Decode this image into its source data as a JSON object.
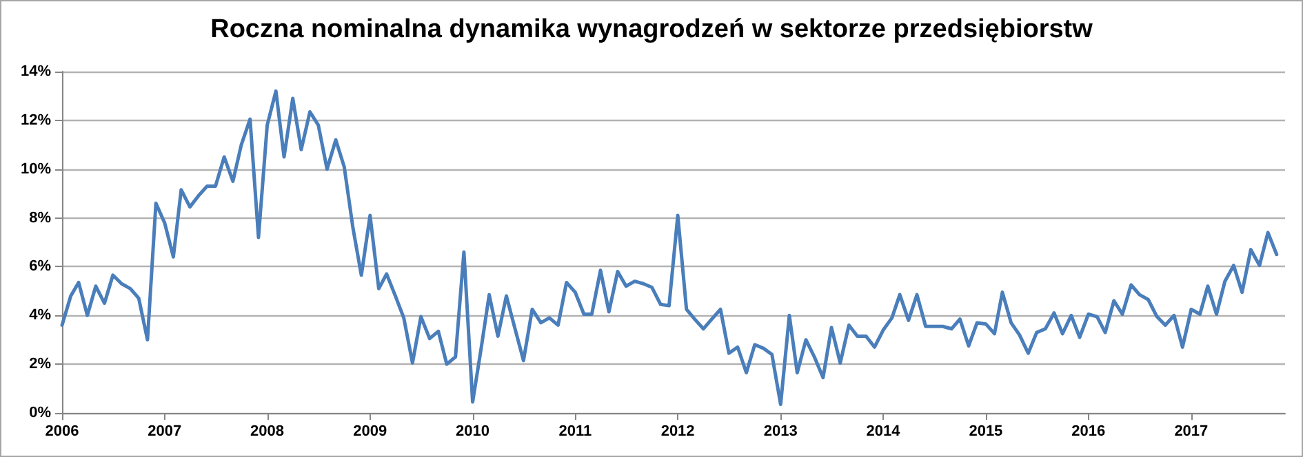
{
  "chart_data": {
    "type": "line",
    "title": "Roczna nominalna dynamika wynagrodzeń w sektorze przedsiębiorstw",
    "x": [
      "2006-01",
      "2006-02",
      "2006-03",
      "2006-04",
      "2006-05",
      "2006-06",
      "2006-07",
      "2006-08",
      "2006-09",
      "2006-10",
      "2006-11",
      "2006-12",
      "2007-01",
      "2007-02",
      "2007-03",
      "2007-04",
      "2007-05",
      "2007-06",
      "2007-07",
      "2007-08",
      "2007-09",
      "2007-10",
      "2007-11",
      "2007-12",
      "2008-01",
      "2008-02",
      "2008-03",
      "2008-04",
      "2008-05",
      "2008-06",
      "2008-07",
      "2008-08",
      "2008-09",
      "2008-10",
      "2008-11",
      "2008-12",
      "2009-01",
      "2009-02",
      "2009-03",
      "2009-04",
      "2009-05",
      "2009-06",
      "2009-07",
      "2009-08",
      "2009-09",
      "2009-10",
      "2009-11",
      "2009-12",
      "2010-01",
      "2010-02",
      "2010-03",
      "2010-04",
      "2010-05",
      "2010-06",
      "2010-07",
      "2010-08",
      "2010-09",
      "2010-10",
      "2010-11",
      "2010-12",
      "2011-01",
      "2011-02",
      "2011-03",
      "2011-04",
      "2011-05",
      "2011-06",
      "2011-07",
      "2011-08",
      "2011-09",
      "2011-10",
      "2011-11",
      "2011-12",
      "2012-01",
      "2012-02",
      "2012-03",
      "2012-04",
      "2012-05",
      "2012-06",
      "2012-07",
      "2012-08",
      "2012-09",
      "2012-10",
      "2012-11",
      "2012-12",
      "2013-01",
      "2013-02",
      "2013-03",
      "2013-04",
      "2013-05",
      "2013-06",
      "2013-07",
      "2013-08",
      "2013-09",
      "2013-10",
      "2013-11",
      "2013-12",
      "2014-01",
      "2014-02",
      "2014-03",
      "2014-04",
      "2014-05",
      "2014-06",
      "2014-07",
      "2014-08",
      "2014-09",
      "2014-10",
      "2014-11",
      "2014-12",
      "2015-01",
      "2015-02",
      "2015-03",
      "2015-04",
      "2015-05",
      "2015-06",
      "2015-07",
      "2015-08",
      "2015-09",
      "2015-10",
      "2015-11",
      "2015-12",
      "2016-01",
      "2016-02",
      "2016-03",
      "2016-04",
      "2016-05",
      "2016-06",
      "2016-07",
      "2016-08",
      "2016-09",
      "2016-10",
      "2016-11",
      "2016-12",
      "2017-01",
      "2017-02",
      "2017-03",
      "2017-04",
      "2017-05",
      "2017-06",
      "2017-07",
      "2017-08",
      "2017-09",
      "2017-10",
      "2017-11"
    ],
    "series": [
      {
        "color": "#4a7ebb",
        "values": [
          3.6,
          4.8,
          5.35,
          4.0,
          5.2,
          4.5,
          5.65,
          5.3,
          5.1,
          4.7,
          3.0,
          8.6,
          7.8,
          6.4,
          9.15,
          8.45,
          8.9,
          9.3,
          9.3,
          10.5,
          9.5,
          11.0,
          12.05,
          7.2,
          11.8,
          13.2,
          10.5,
          12.9,
          10.8,
          12.35,
          11.8,
          10.0,
          11.2,
          10.1,
          7.6,
          5.65,
          8.1,
          5.1,
          5.7,
          4.8,
          3.9,
          2.05,
          3.95,
          3.05,
          3.35,
          2.0,
          2.3,
          6.6,
          0.45,
          2.7,
          4.85,
          3.15,
          4.8,
          3.45,
          2.15,
          4.25,
          3.7,
          3.9,
          3.6,
          5.35,
          4.95,
          4.05,
          4.05,
          5.85,
          4.15,
          5.8,
          5.2,
          5.4,
          5.3,
          5.15,
          4.45,
          4.4,
          8.1,
          4.25,
          3.85,
          3.45,
          3.85,
          4.25,
          2.45,
          2.7,
          1.65,
          2.8,
          2.65,
          2.4,
          0.35,
          4.0,
          1.65,
          3.0,
          2.3,
          1.45,
          3.5,
          2.05,
          3.6,
          3.15,
          3.15,
          2.7,
          3.4,
          3.9,
          4.85,
          3.8,
          4.85,
          3.55,
          3.55,
          3.55,
          3.45,
          3.85,
          2.75,
          3.7,
          3.65,
          3.25,
          4.95,
          3.7,
          3.2,
          2.45,
          3.3,
          3.45,
          4.1,
          3.25,
          4.0,
          3.1,
          4.05,
          3.95,
          3.3,
          4.6,
          4.05,
          5.25,
          4.85,
          4.65,
          3.95,
          3.6,
          4.0,
          2.7,
          4.25,
          4.05,
          5.2,
          4.05,
          5.4,
          6.05,
          4.95,
          6.7,
          6.05,
          7.4,
          6.5
        ]
      }
    ],
    "xlim": [
      "2006-01",
      "2017-12"
    ],
    "xticks": [
      "2006",
      "2007",
      "2008",
      "2009",
      "2010",
      "2011",
      "2012",
      "2013",
      "2014",
      "2015",
      "2016",
      "2017"
    ],
    "ylim": [
      0,
      14
    ],
    "yticks": [
      {
        "value": 0,
        "label": "0%"
      },
      {
        "value": 2,
        "label": "2%"
      },
      {
        "value": 4,
        "label": "4%"
      },
      {
        "value": 6,
        "label": "6%"
      },
      {
        "value": 8,
        "label": "8%"
      },
      {
        "value": 10,
        "label": "10%"
      },
      {
        "value": 12,
        "label": "12%"
      },
      {
        "value": 14,
        "label": "14%"
      }
    ],
    "grid": "y",
    "marker": "none",
    "line_style": "solid"
  }
}
